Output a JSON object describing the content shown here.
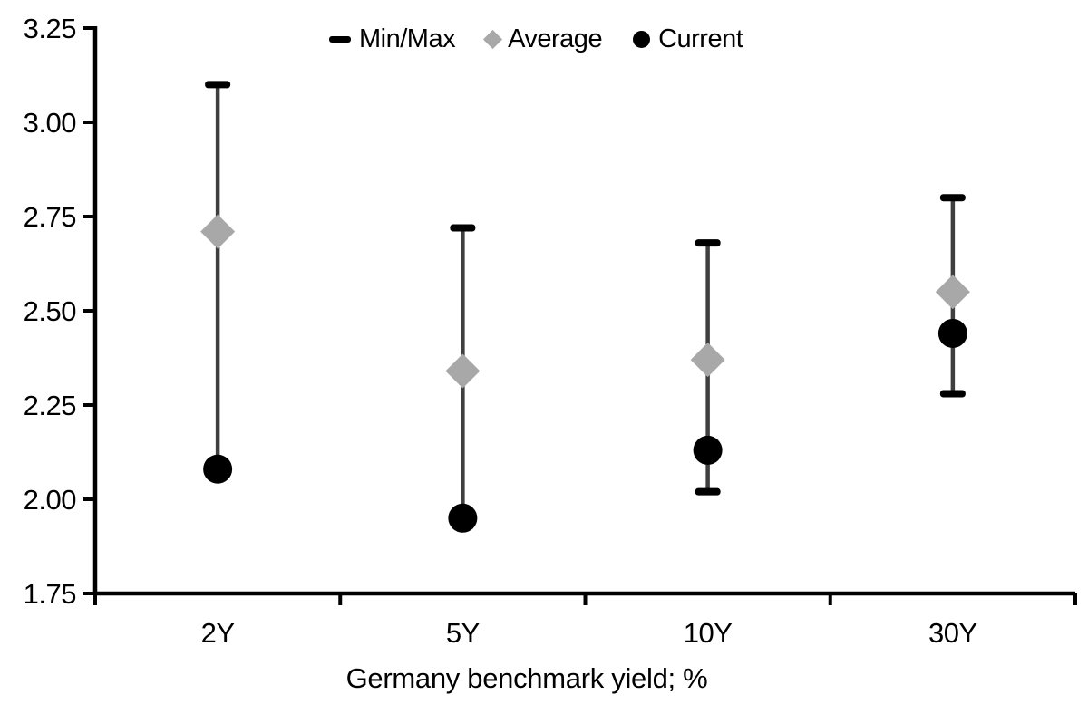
{
  "chart_data": {
    "type": "scatter",
    "subtype": "min-max-range-with-point-markers",
    "title": "",
    "xlabel": "Germany benchmark yield; %",
    "ylabel": "",
    "categories": [
      "2Y",
      "5Y",
      "10Y",
      "30Y"
    ],
    "series": [
      {
        "name": "Min/Max",
        "role": "range",
        "max": [
          3.1,
          2.72,
          2.68,
          2.8
        ],
        "min": [
          2.08,
          1.95,
          2.02,
          2.28
        ]
      },
      {
        "name": "Average",
        "role": "point",
        "marker": "diamond",
        "values": [
          2.71,
          2.34,
          2.37,
          2.55
        ]
      },
      {
        "name": "Current",
        "role": "point",
        "marker": "circle",
        "values": [
          2.08,
          1.95,
          2.13,
          2.44
        ]
      }
    ],
    "ylim": [
      1.75,
      3.25
    ],
    "ytick_step": 0.25,
    "ytick_labels": [
      "1.75",
      "2.00",
      "2.25",
      "2.50",
      "2.75",
      "3.00",
      "3.25"
    ],
    "grid": false,
    "legend_position": "top"
  },
  "legend": {
    "items": [
      {
        "label": "Min/Max",
        "marker": "dash"
      },
      {
        "label": "Average",
        "marker": "diamond"
      },
      {
        "label": "Current",
        "marker": "circle"
      }
    ]
  },
  "colors": {
    "black": "#000000",
    "average_gray": "#a8a8a8",
    "range_line": "#3f3f3f",
    "background": "#ffffff"
  }
}
